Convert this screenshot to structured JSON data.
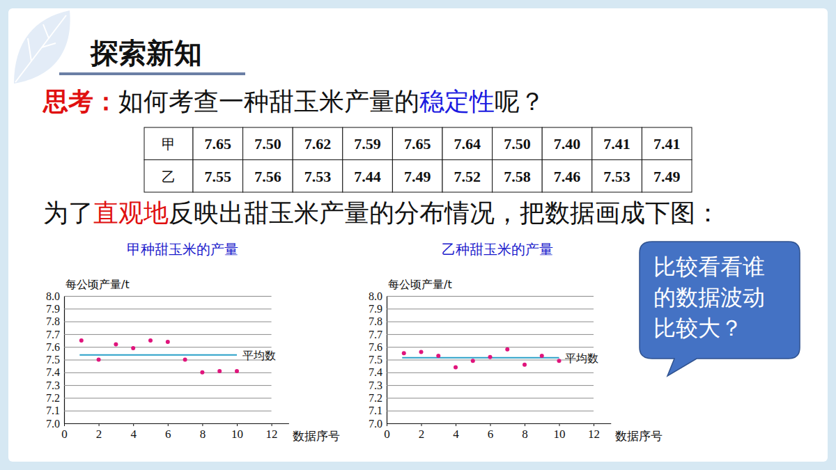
{
  "header": {
    "title": "探索新知"
  },
  "question": {
    "label": "思考：",
    "parts": [
      "如何考查一种甜玉米产量的",
      "稳定性",
      "呢？"
    ]
  },
  "table": {
    "rows": [
      [
        "甲",
        "7.65",
        "7.50",
        "7.62",
        "7.59",
        "7.65",
        "7.64",
        "7.50",
        "7.40",
        "7.41",
        "7.41"
      ],
      [
        "乙",
        "7.55",
        "7.56",
        "7.53",
        "7.44",
        "7.49",
        "7.52",
        "7.58",
        "7.46",
        "7.53",
        "7.49"
      ]
    ]
  },
  "caption": {
    "parts": [
      "为了",
      "直观地",
      "反映出甜玉米产量的分布情况，把数据画成下图："
    ]
  },
  "callout": {
    "lines": [
      "比较看看谁",
      "的数据波动",
      "比较大？"
    ]
  },
  "chart_data": [
    {
      "type": "scatter",
      "title": "甲种甜玉米的产量",
      "x_label": "数据序号",
      "y_label": "每公顷产量/t",
      "x": [
        1,
        2,
        3,
        4,
        5,
        6,
        7,
        8,
        9,
        10
      ],
      "values": [
        7.65,
        7.5,
        7.62,
        7.59,
        7.65,
        7.64,
        7.5,
        7.4,
        7.41,
        7.41
      ],
      "color": "#e0147c",
      "marker": "circle",
      "xlim": [
        0,
        13
      ],
      "xticks": [
        0,
        2,
        4,
        6,
        8,
        10,
        12
      ],
      "ylim": [
        7,
        8
      ],
      "yticks": [
        {
          "value": 7,
          "label": "7.0"
        },
        7.1,
        7.2,
        7.3,
        7.4,
        7.5,
        7.6,
        7.7,
        7.8,
        7.9,
        {
          "value": 8,
          "label": "8.0"
        }
      ],
      "grid": true,
      "mean_line": {
        "value": 7.537,
        "from": 0.9,
        "to": 10,
        "label": "平均数"
      }
    },
    {
      "type": "scatter",
      "title": "乙种甜玉米的产量",
      "x_label": "数据序号",
      "y_label": "每公顷产量/t",
      "x": [
        1,
        2,
        3,
        4,
        5,
        6,
        7,
        8,
        9,
        10
      ],
      "values": [
        7.55,
        7.56,
        7.53,
        7.44,
        7.49,
        7.52,
        7.58,
        7.46,
        7.53,
        7.49
      ],
      "color": "#e0147c",
      "marker": "circle",
      "xlim": [
        0,
        13
      ],
      "xticks": [
        0,
        2,
        4,
        6,
        8,
        10,
        12
      ],
      "ylim": [
        7,
        8
      ],
      "yticks": [
        {
          "value": 7,
          "label": "7.0"
        },
        7.1,
        7.2,
        7.3,
        7.4,
        7.5,
        7.6,
        7.7,
        7.8,
        7.9,
        {
          "value": 8,
          "label": "8.0"
        }
      ],
      "grid": true,
      "mean_line": {
        "value": 7.515,
        "from": 0.9,
        "to": 10,
        "label": "平均数"
      }
    }
  ]
}
